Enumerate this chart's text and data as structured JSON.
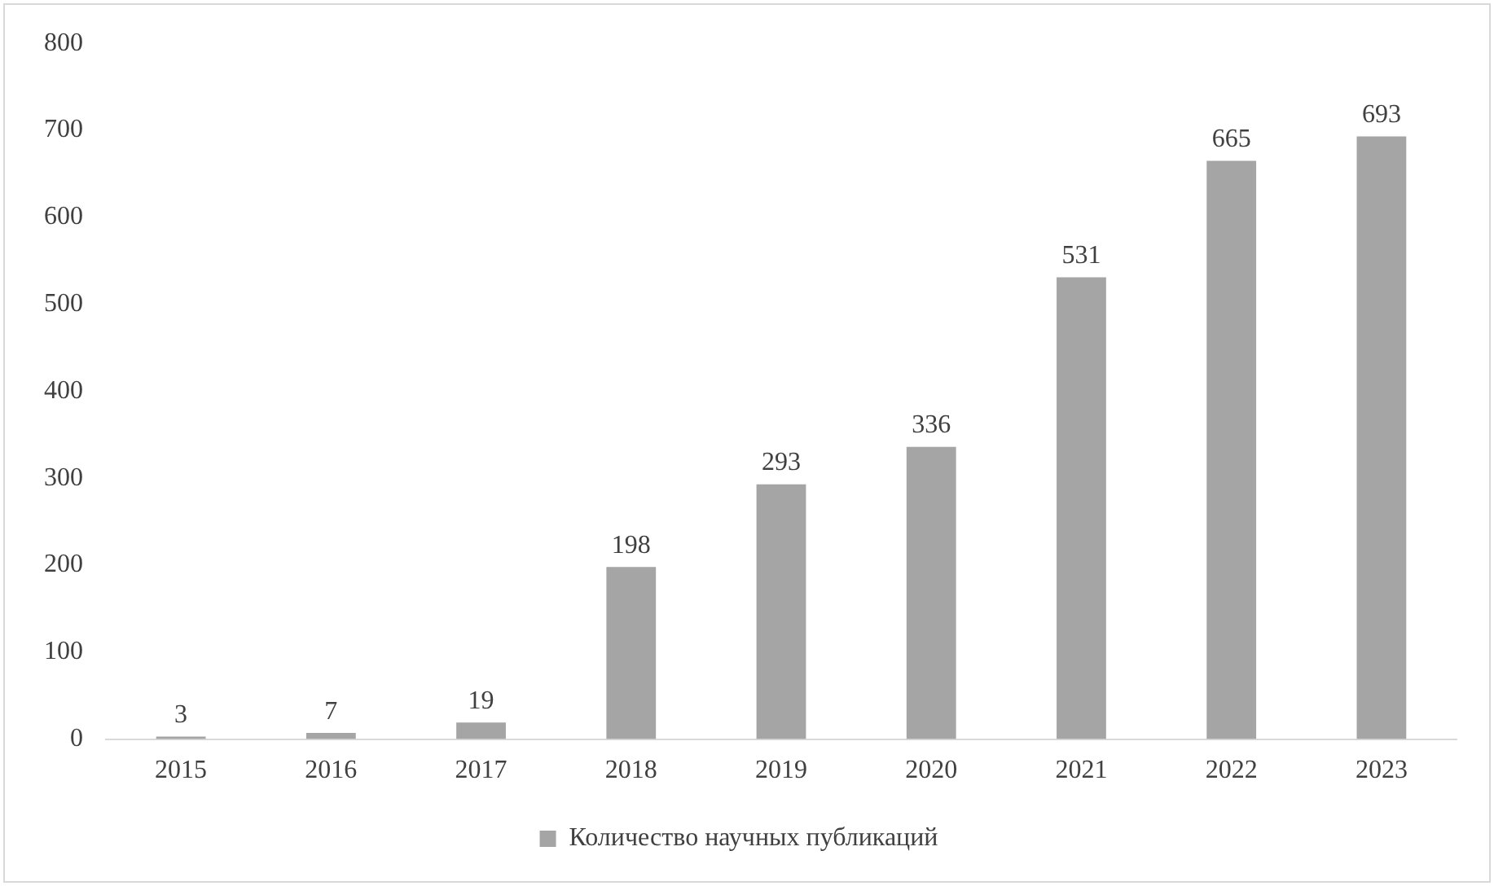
{
  "chart_data": {
    "type": "bar",
    "categories": [
      "2015",
      "2016",
      "2017",
      "2018",
      "2019",
      "2020",
      "2021",
      "2022",
      "2023"
    ],
    "series": [
      {
        "name": "Количество научных публикаций",
        "color": "#a5a5a5",
        "values": [
          3,
          7,
          19,
          198,
          293,
          336,
          531,
          665,
          693
        ]
      }
    ],
    "ylim": [
      0,
      800
    ],
    "yticks": [
      0,
      100,
      200,
      300,
      400,
      500,
      600,
      700,
      800
    ],
    "grid": false,
    "legend": "bottom",
    "data_labels": true
  }
}
